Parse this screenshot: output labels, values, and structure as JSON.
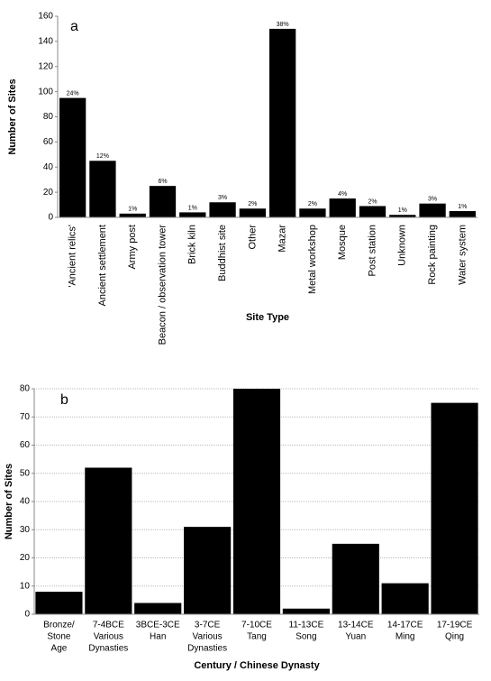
{
  "chart_data": [
    {
      "type": "bar",
      "label": "a",
      "y_label": "Number of Sites",
      "x_label": "Site Type",
      "categories": [
        [
          "'Ancient relics'"
        ],
        [
          "Ancient settlement"
        ],
        [
          "Army post"
        ],
        [
          "Beacon / observation tower"
        ],
        [
          "Brick kiln"
        ],
        [
          "Buddhist site"
        ],
        [
          "Other"
        ],
        [
          "Mazar"
        ],
        [
          "Metal workshop"
        ],
        [
          "Mosque"
        ],
        [
          "Post station"
        ],
        [
          "Unknown"
        ],
        [
          "Rock painting"
        ],
        [
          "Water system"
        ]
      ],
      "values": [
        95,
        45,
        3,
        25,
        4,
        12,
        7,
        150,
        7,
        15,
        9,
        2,
        11,
        5
      ],
      "percentage_labels": [
        "24%",
        "12%",
        "1%",
        "6%",
        "1%",
        "3%",
        "2%",
        "38%",
        "2%",
        "4%",
        "2%",
        "1%",
        "3%",
        "1%"
      ],
      "color": "#000000",
      "ylim": [
        0,
        160
      ],
      "yticks": [
        0,
        20,
        40,
        60,
        80,
        100,
        120,
        140,
        160
      ],
      "grid": false
    },
    {
      "type": "bar",
      "label": "b",
      "y_label": "Number of Sites",
      "x_label": "Century / Chinese Dynasty",
      "categories": [
        [
          "Bronze/",
          "Stone",
          "Age"
        ],
        [
          "7-4BCE",
          "Various",
          "Dynasties"
        ],
        [
          "3BCE-3CE",
          "Han"
        ],
        [
          "3-7CE",
          "Various",
          "Dynasties"
        ],
        [
          "7-10CE",
          "Tang"
        ],
        [
          "11-13CE",
          "Song"
        ],
        [
          "13-14CE",
          "Yuan"
        ],
        [
          "14-17CE",
          "Ming"
        ],
        [
          "17-19CE",
          "Qing"
        ]
      ],
      "values": [
        8,
        52,
        4,
        31,
        80,
        2,
        25,
        11,
        75
      ],
      "color": "#000000",
      "ylim": [
        0,
        80
      ],
      "yticks": [
        0,
        10,
        20,
        30,
        40,
        50,
        60,
        70,
        80
      ],
      "grid": true
    }
  ]
}
